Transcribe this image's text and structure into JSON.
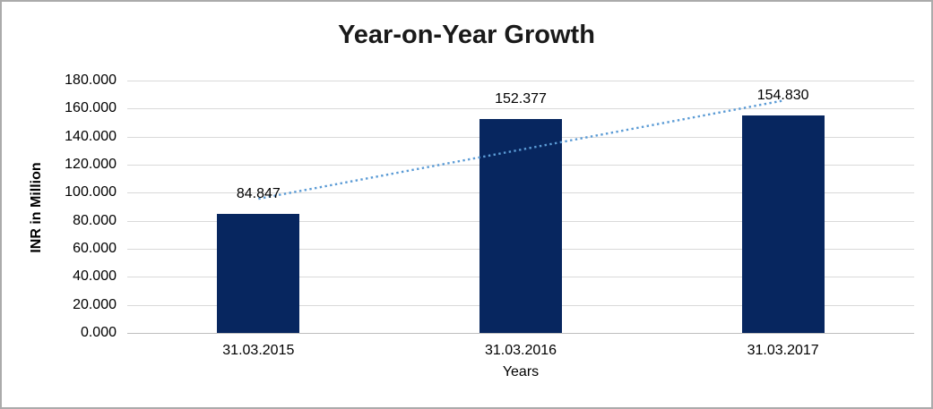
{
  "chart_data": {
    "type": "bar",
    "title": "Year-on-Year Growth",
    "xlabel": "Years",
    "ylabel": "INR in Million",
    "categories": [
      "31.03.2015",
      "31.03.2016",
      "31.03.2017"
    ],
    "values": [
      84.847,
      152.377,
      154.83
    ],
    "data_labels": [
      "84.847",
      "152.377",
      "154.830"
    ],
    "ylim": [
      0,
      180
    ],
    "ytick_step": 20,
    "ytick_labels": [
      "180.000",
      "160.000",
      "140.000",
      "120.000",
      "100.000",
      "80.000",
      "60.000",
      "40.000",
      "20.000",
      "0.000"
    ],
    "grid": true,
    "legend": "none",
    "trendline": {
      "type": "linear",
      "style": "dotted"
    },
    "colors": {
      "bar": "#07265f",
      "trendline": "#5b9bd5",
      "gridline": "#d9d9d9",
      "axis_line": "#bfbfbf",
      "text": "#000000",
      "title": "#1a1a1a",
      "border": "#ababab"
    }
  }
}
